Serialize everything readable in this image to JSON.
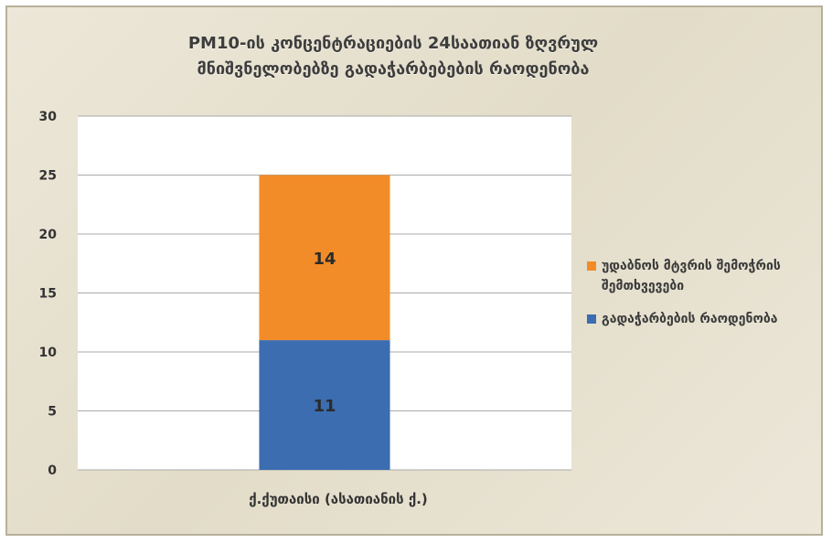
{
  "chart_data": {
    "type": "bar",
    "stacked": true,
    "title_lines": [
      "PM10-ის კონცენტრაციების 24საათიან ზღვრულ",
      "მნიშვნელობებზე გადაჭარბებების რაოდენობა"
    ],
    "categories": [
      "ქ.ქუთაისი (ასათიანის   ქ.)"
    ],
    "series": [
      {
        "name": "გადაჭარბების რაოდენობა",
        "values": [
          11
        ],
        "color": "#3b6db0"
      },
      {
        "name": "უდაბნოს მტვრის შემოჭრის შემთხვევები",
        "values": [
          14
        ],
        "color": "#f28c28"
      }
    ],
    "ylim": [
      0,
      30
    ],
    "yticks": [
      "0",
      "5",
      "10",
      "15",
      "20",
      "25",
      "30"
    ],
    "grid": true,
    "legend_position": "right",
    "data_labels": [
      "11",
      "14"
    ]
  }
}
